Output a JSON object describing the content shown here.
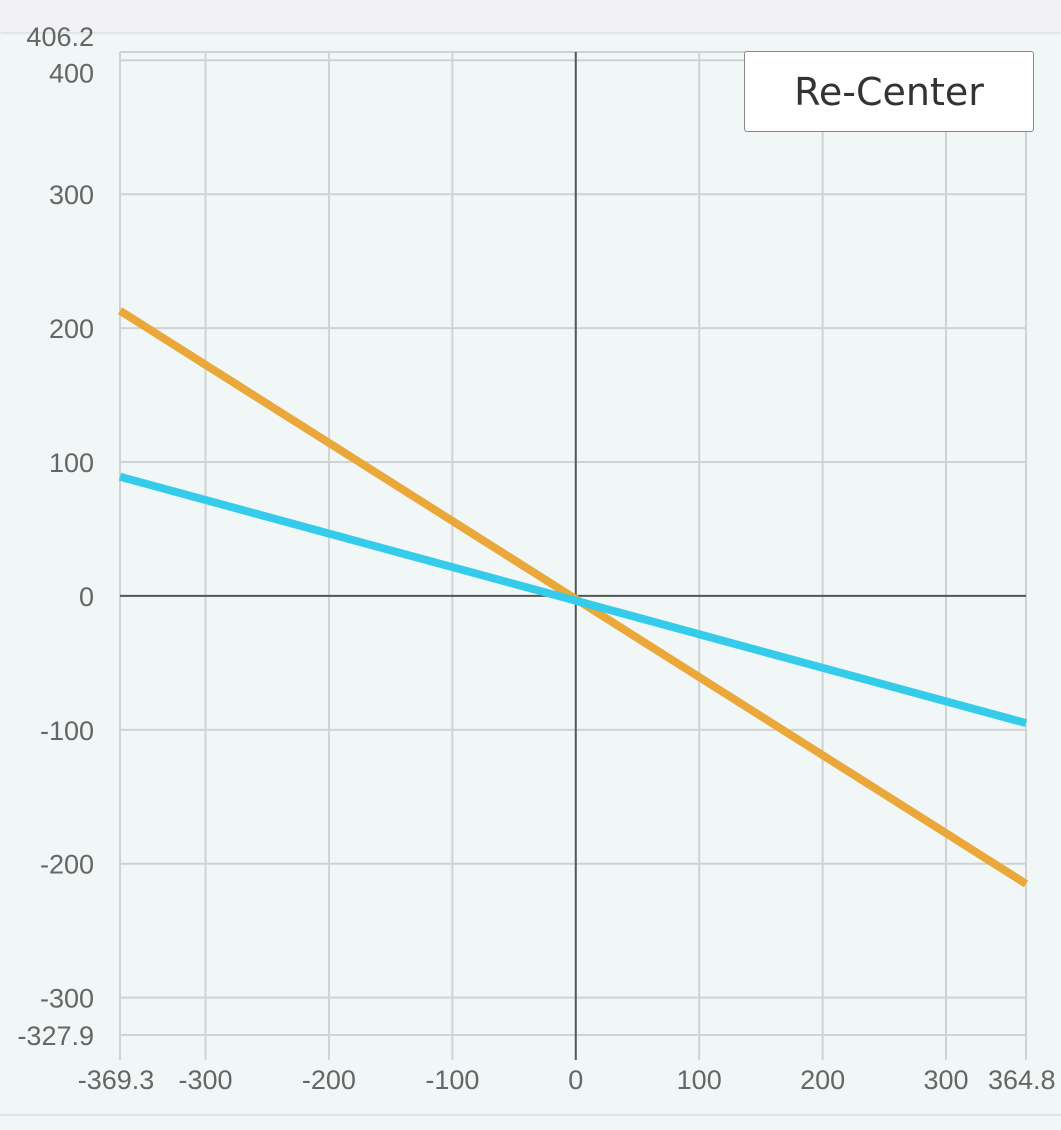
{
  "recenter_label": "Re-Center",
  "chart_data": {
    "type": "line",
    "title": "",
    "xlabel": "",
    "ylabel": "",
    "xlim": [
      -369.3,
      364.8
    ],
    "ylim": [
      -327.9,
      406.2
    ],
    "x_ticks": [
      -300,
      -200,
      -100,
      0,
      100,
      200,
      300
    ],
    "y_ticks": [
      -300,
      -200,
      -100,
      0,
      100,
      200,
      300,
      400
    ],
    "x_tick_labels": [
      "-369.3",
      "-300",
      "-200",
      "-100",
      "0",
      "100",
      "200",
      "300",
      "364.8"
    ],
    "y_tick_labels": [
      "406.2",
      "400",
      "300",
      "200",
      "100",
      "0",
      "-100",
      "-200",
      "-300",
      "-327.9"
    ],
    "grid": true,
    "series": [
      {
        "name": "orange line",
        "color": "#eba83a",
        "x": [
          -369.3,
          364.8
        ],
        "y": [
          213,
          -215
        ]
      },
      {
        "name": "blue line",
        "color": "#35cbea",
        "x": [
          -369.3,
          364.8
        ],
        "y": [
          89,
          -95
        ]
      }
    ]
  }
}
